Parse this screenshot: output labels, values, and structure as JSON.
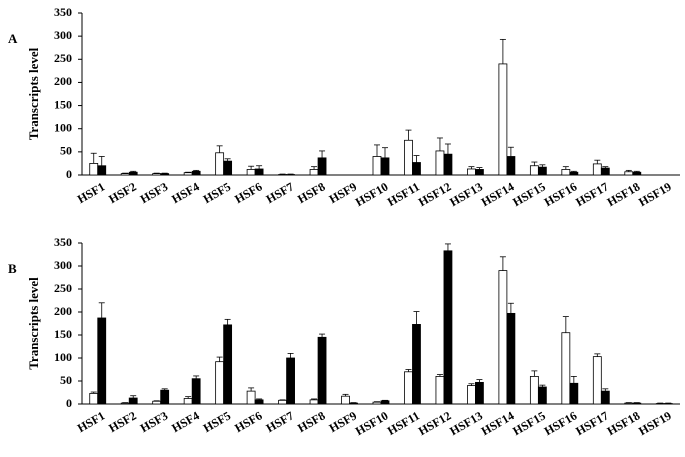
{
  "chart_data": [
    {
      "type": "bar",
      "label": "A",
      "y_label": "Transcripts level",
      "categories": [
        "HSF1",
        "HSF2",
        "HSF3",
        "HSF4",
        "HSF5",
        "HSF6",
        "HSF7",
        "HSF8",
        "HSF9",
        "HSF10",
        "HSF11",
        "HSF12",
        "HSF13",
        "HSF14",
        "HSF15",
        "HSF16",
        "HSF17",
        "HSF18",
        "HSF19"
      ],
      "series": [
        {
          "color": "#ffffff",
          "values": [
            25,
            3,
            3,
            5,
            48,
            12,
            1,
            12,
            0,
            40,
            75,
            52,
            13,
            240,
            20,
            12,
            24,
            7,
            0
          ],
          "errors": [
            22,
            1,
            1,
            1,
            15,
            7,
            1,
            6,
            0,
            25,
            22,
            28,
            5,
            53,
            8,
            6,
            8,
            3,
            0
          ]
        },
        {
          "color": "#000000",
          "values": [
            20,
            6,
            3,
            8,
            30,
            13,
            1,
            37,
            0,
            37,
            27,
            45,
            12,
            40,
            17,
            6,
            15,
            6,
            0
          ],
          "errors": [
            20,
            2,
            1,
            2,
            5,
            7,
            1,
            15,
            0,
            22,
            15,
            22,
            4,
            20,
            5,
            2,
            3,
            2,
            0
          ]
        }
      ],
      "ylim": [
        0,
        350
      ],
      "yticks": [
        0,
        50,
        100,
        150,
        200,
        250,
        300,
        350
      ]
    },
    {
      "type": "bar",
      "label": "B",
      "y_label": "Transcripts level",
      "categories": [
        "HSF1",
        "HSF2",
        "HSF3",
        "HSF4",
        "HSF5",
        "HSF6",
        "HSF7",
        "HSF8",
        "HSF9",
        "HSF10",
        "HSF11",
        "HSF12",
        "HSF13",
        "HSF14",
        "HSF15",
        "HSF16",
        "HSF17",
        "HSF18",
        "HSF19"
      ],
      "series": [
        {
          "color": "#ffffff",
          "values": [
            23,
            2,
            6,
            12,
            92,
            28,
            8,
            9,
            17,
            4,
            70,
            60,
            40,
            290,
            60,
            155,
            103,
            2,
            1
          ],
          "errors": [
            3,
            1,
            1,
            4,
            10,
            7,
            1,
            2,
            4,
            1,
            5,
            4,
            4,
            30,
            12,
            35,
            6,
            1,
            1
          ]
        },
        {
          "color": "#000000",
          "values": [
            187,
            13,
            30,
            55,
            172,
            9,
            100,
            145,
            2,
            7,
            173,
            333,
            47,
            197,
            37,
            45,
            28,
            2,
            1
          ],
          "errors": [
            33,
            5,
            3,
            6,
            12,
            2,
            10,
            7,
            1,
            1,
            28,
            15,
            6,
            22,
            4,
            15,
            5,
            1,
            1
          ]
        }
      ],
      "ylim": [
        0,
        350
      ],
      "yticks": [
        0,
        50,
        100,
        150,
        200,
        250,
        300,
        350
      ]
    }
  ]
}
